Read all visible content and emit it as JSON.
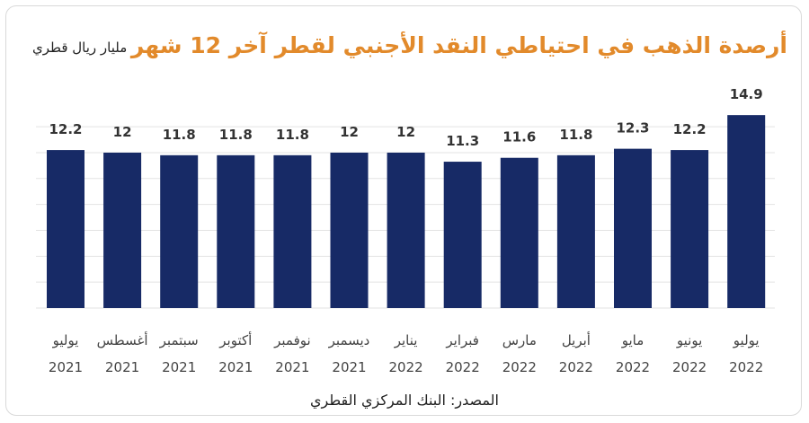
{
  "title": "أرصدة الذهب في احتياطي النقد الأجنبي لقطر آخر 12 شهر",
  "unit_label": "مليار ريال قطري",
  "source": "المصدر: البنك المركزي القطري",
  "colors": {
    "bar": "#172a66",
    "title": "#e28a2b"
  },
  "chart_data": {
    "type": "bar",
    "title": "أرصدة الذهب في احتياطي النقد الأجنبي لقطر آخر 12 شهر",
    "ylabel": "مليار ريال قطري",
    "categories": [
      {
        "month": "يوليو",
        "year": "2021"
      },
      {
        "month": "أغسطس",
        "year": "2021"
      },
      {
        "month": "سبتمبر",
        "year": "2021"
      },
      {
        "month": "أكتوبر",
        "year": "2021"
      },
      {
        "month": "نوفمبر",
        "year": "2021"
      },
      {
        "month": "ديسمبر",
        "year": "2021"
      },
      {
        "month": "يناير",
        "year": "2022"
      },
      {
        "month": "فبراير",
        "year": "2022"
      },
      {
        "month": "مارس",
        "year": "2022"
      },
      {
        "month": "أبريل",
        "year": "2022"
      },
      {
        "month": "مايو",
        "year": "2022"
      },
      {
        "month": "يونيو",
        "year": "2022"
      },
      {
        "month": "يوليو",
        "year": "2022"
      }
    ],
    "values": [
      12.2,
      12,
      11.8,
      11.8,
      11.8,
      12,
      12,
      11.3,
      11.6,
      11.8,
      12.3,
      12.2,
      14.9
    ],
    "value_labels": [
      "12.2",
      "12",
      "11.8",
      "11.8",
      "11.8",
      "12",
      "12",
      "11.3",
      "11.6",
      "11.8",
      "12.3",
      "12.2",
      "14.9"
    ],
    "grid": true,
    "legend": "none"
  }
}
